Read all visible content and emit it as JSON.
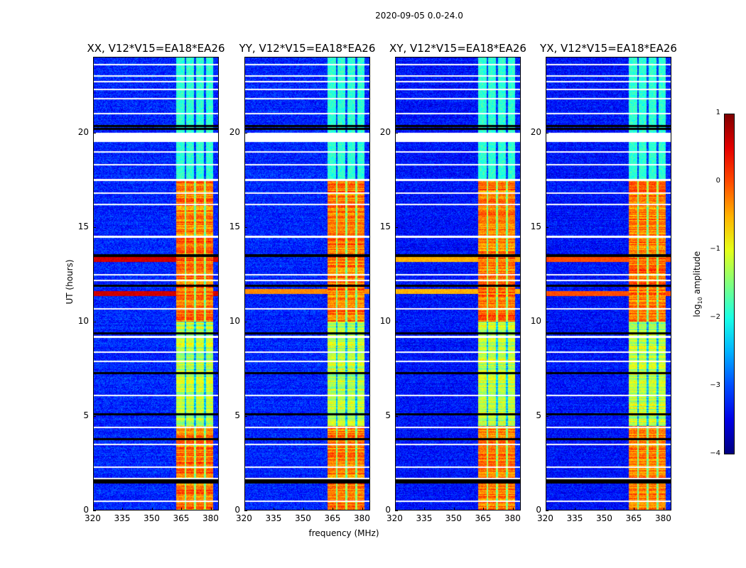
{
  "chart_data": {
    "type": "heatmap",
    "title": "2020-09-05 0.0-24.0",
    "xlabel": "frequency (MHz)",
    "ylabel": "UT (hours)",
    "xlim": [
      320,
      384
    ],
    "ylim": [
      0,
      24
    ],
    "xticks": [
      "320",
      "335",
      "350",
      "365",
      "380"
    ],
    "xtick_values": [
      320,
      335,
      350,
      365,
      380
    ],
    "yticks": [
      "0",
      "5",
      "10",
      "15",
      "20"
    ],
    "ytick_values": [
      0,
      5,
      10,
      15,
      20
    ],
    "colorbar": {
      "label_main": "log",
      "label_sub": "10",
      "label_rest": " amplitude",
      "range": [
        -4,
        1
      ],
      "ticks": [
        "1",
        "0",
        "−1",
        "−2",
        "−3",
        "−4"
      ],
      "tick_values": [
        1,
        0,
        -1,
        -2,
        -3,
        -4
      ],
      "colormap": "jet"
    },
    "panels": [
      {
        "title": "XX, V12*V15=EA18*EA26",
        "rfi_row_hours": [
          11.5,
          13.3
        ],
        "rfi_row_level": 0.6
      },
      {
        "title": "YY, V12*V15=EA18*EA26",
        "rfi_row_hours": [
          11.6
        ],
        "rfi_row_level": -0.3
      },
      {
        "title": "XY, V12*V15=EA18*EA26",
        "rfi_row_hours": [
          11.6,
          13.3
        ],
        "rfi_row_level": -0.5
      },
      {
        "title": "YX, V12*V15=EA18*EA26",
        "rfi_row_hours": [
          11.5,
          13.3
        ],
        "rfi_row_level": 0.0
      }
    ],
    "background_level": -3.2,
    "band_MHz": [
      362,
      381
    ],
    "band_level": -1.2,
    "band_strong_hours": [
      [
        0,
        4.5
      ],
      [
        10,
        17.5
      ]
    ],
    "band_strong_level": -0.2,
    "flagged_gap_hours": [
      19.5,
      20.0
    ],
    "black_row_hours": [
      20.2,
      20.35,
      13.5,
      11.9,
      9.4,
      7.3,
      5.1,
      3.8,
      1.6,
      1.5
    ],
    "white_row_hours": [
      23.6,
      23.0,
      22.7,
      22.3,
      21.8,
      21.0,
      19.0,
      18.3,
      17.5,
      16.8,
      16.2,
      14.5,
      12.5,
      12.2,
      10.7,
      9.2,
      8.4,
      7.9,
      6.1,
      4.4,
      3.5,
      2.3,
      1.7,
      0.5
    ]
  }
}
